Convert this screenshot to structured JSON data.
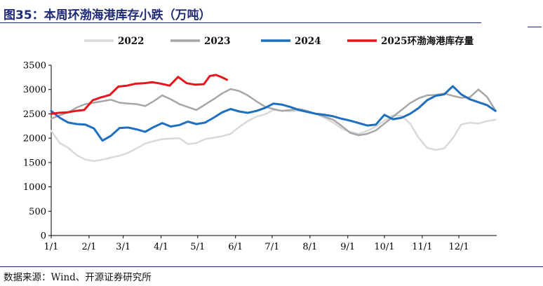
{
  "figure": {
    "title": "图35：本周环渤海港库存小跌（万吨）",
    "source": "数据来源：Wind、开源证券研究所"
  },
  "colors": {
    "title": "#1f2a78",
    "rule": "#1f2a78"
  },
  "chart_data": {
    "type": "line",
    "title": "",
    "xlabel": "",
    "ylabel": "",
    "ylim": [
      0,
      3500
    ],
    "yticks": [
      0,
      500,
      1000,
      1500,
      2000,
      2500,
      3000,
      3500
    ],
    "xlim": [
      1,
      366
    ],
    "xticks": [
      {
        "label": "1/1",
        "x": 1
      },
      {
        "label": "2/1",
        "x": 32
      },
      {
        "label": "3/1",
        "x": 60
      },
      {
        "label": "4/1",
        "x": 91
      },
      {
        "label": "5/1",
        "x": 121
      },
      {
        "label": "6/1",
        "x": 152
      },
      {
        "label": "7/1",
        "x": 182
      },
      {
        "label": "8/1",
        "x": 213
      },
      {
        "label": "9/1",
        "x": 244
      },
      {
        "label": "10/1",
        "x": 274
      },
      {
        "label": "11/1",
        "x": 305
      },
      {
        "label": "12/1",
        "x": 335
      }
    ],
    "x_unit": "day of year",
    "grid": false,
    "legend_position": "top",
    "series": [
      {
        "name": "2022",
        "color": "#d9d9d9",
        "width": 2.5,
        "x": [
          1,
          8,
          15,
          22,
          29,
          36,
          43,
          50,
          57,
          64,
          71,
          78,
          85,
          92,
          99,
          106,
          113,
          120,
          127,
          134,
          141,
          148,
          155,
          162,
          169,
          176,
          183,
          190,
          197,
          204,
          211,
          218,
          225,
          232,
          239,
          246,
          253,
          260,
          267,
          274,
          281,
          288,
          295,
          302,
          309,
          316,
          323,
          330,
          337,
          344,
          351,
          358,
          365
        ],
        "values": [
          2150,
          1900,
          1800,
          1650,
          1560,
          1530,
          1560,
          1600,
          1640,
          1700,
          1790,
          1890,
          1940,
          1980,
          1990,
          2000,
          1880,
          1900,
          1980,
          2010,
          2040,
          2090,
          2230,
          2350,
          2440,
          2490,
          2580,
          2570,
          2550,
          2570,
          2540,
          2500,
          2420,
          2320,
          2200,
          2130,
          2090,
          2150,
          2240,
          2360,
          2470,
          2460,
          2300,
          2010,
          1800,
          1760,
          1790,
          2000,
          2280,
          2320,
          2300,
          2350,
          2380
        ]
      },
      {
        "name": "2023",
        "color": "#a6a6a6",
        "width": 2.5,
        "x": [
          1,
          8,
          15,
          22,
          29,
          36,
          43,
          50,
          57,
          64,
          71,
          78,
          85,
          92,
          99,
          106,
          113,
          120,
          127,
          134,
          141,
          148,
          155,
          162,
          169,
          176,
          183,
          190,
          197,
          204,
          211,
          218,
          225,
          232,
          239,
          246,
          253,
          260,
          267,
          274,
          281,
          288,
          295,
          302,
          309,
          316,
          323,
          330,
          337,
          344,
          351,
          358,
          365
        ],
        "values": [
          2400,
          2470,
          2530,
          2630,
          2700,
          2730,
          2760,
          2790,
          2730,
          2710,
          2700,
          2660,
          2760,
          2880,
          2800,
          2700,
          2640,
          2580,
          2690,
          2800,
          2920,
          3010,
          2970,
          2880,
          2760,
          2650,
          2600,
          2560,
          2580,
          2600,
          2560,
          2500,
          2440,
          2380,
          2250,
          2110,
          2060,
          2090,
          2160,
          2300,
          2440,
          2580,
          2720,
          2820,
          2880,
          2890,
          2920,
          2870,
          2830,
          2840,
          3000,
          2850,
          2570
        ]
      },
      {
        "name": "2024",
        "color": "#1f6fc0",
        "width": 3,
        "x": [
          1,
          8,
          15,
          22,
          29,
          36,
          43,
          50,
          57,
          64,
          71,
          78,
          85,
          92,
          99,
          106,
          113,
          120,
          127,
          134,
          141,
          148,
          155,
          162,
          169,
          176,
          183,
          190,
          197,
          204,
          211,
          218,
          225,
          232,
          239,
          246,
          253,
          260,
          267,
          274,
          281,
          288,
          295,
          302,
          309,
          316,
          323,
          330,
          337,
          344,
          351,
          358,
          365
        ],
        "values": [
          2560,
          2420,
          2320,
          2290,
          2280,
          2200,
          1950,
          2050,
          2210,
          2220,
          2180,
          2130,
          2230,
          2310,
          2240,
          2270,
          2340,
          2290,
          2320,
          2420,
          2530,
          2600,
          2550,
          2520,
          2560,
          2620,
          2710,
          2690,
          2640,
          2580,
          2540,
          2500,
          2480,
          2450,
          2400,
          2360,
          2310,
          2260,
          2280,
          2480,
          2390,
          2420,
          2500,
          2620,
          2780,
          2870,
          2900,
          3070,
          2900,
          2800,
          2740,
          2680,
          2560
        ]
      },
      {
        "name": "2025环渤海港库存量",
        "color": "#e8141c",
        "width": 3,
        "x": [
          1,
          7,
          14,
          21,
          28,
          35,
          42,
          49,
          56,
          63,
          70,
          77,
          84,
          91,
          98,
          105,
          112,
          119,
          126,
          131,
          136,
          141,
          145
        ],
        "values": [
          2500,
          2520,
          2530,
          2560,
          2580,
          2780,
          2840,
          2890,
          3060,
          3080,
          3120,
          3130,
          3150,
          3120,
          3080,
          3260,
          3130,
          3100,
          3110,
          3280,
          3300,
          3250,
          3200
        ]
      }
    ]
  }
}
